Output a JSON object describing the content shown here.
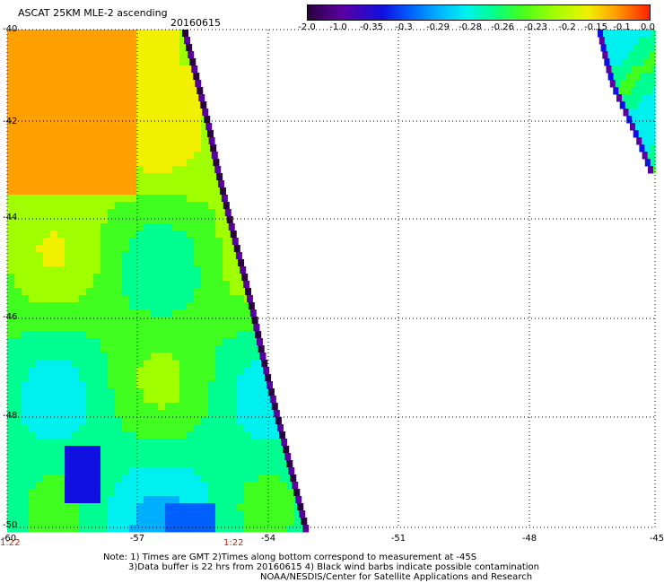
{
  "header": {
    "title": "ASCAT 25KM MLE-2 ascending",
    "date": "20160615"
  },
  "colorbar": {
    "labels": [
      "-2.0",
      "-1.0",
      "-0.35",
      "-0.3",
      "-0.29",
      "-0.28",
      "-0.26",
      "-0.23",
      "-0.2",
      "-0.15",
      "-0.1",
      "0.0"
    ],
    "colors": [
      "#2a0040",
      "#5a00a0",
      "#1010e0",
      "#0060ff",
      "#00b0ff",
      "#00f0f0",
      "#00ff90",
      "#40ff20",
      "#a0ff00",
      "#f0f000",
      "#ffa000",
      "#ff2000"
    ]
  },
  "axes": {
    "lat_labels": [
      "-40",
      "-42",
      "-44",
      "-46",
      "-48",
      "-50"
    ],
    "lon_labels": [
      "-60",
      "-57",
      "-54",
      "-51",
      "-48",
      "-45"
    ]
  },
  "time_labels": [
    "1:22",
    "1:22"
  ],
  "notes": [
    "Note: 1) Times are GMT 2)Times along bottom correspond to measurement at -45S",
    "3)Data buffer is 22 hrs from 20160615 4) Black wind barbs indicate possible contamination",
    "NOAA/NESDIS/Center for Satellite Applications and Research"
  ]
}
